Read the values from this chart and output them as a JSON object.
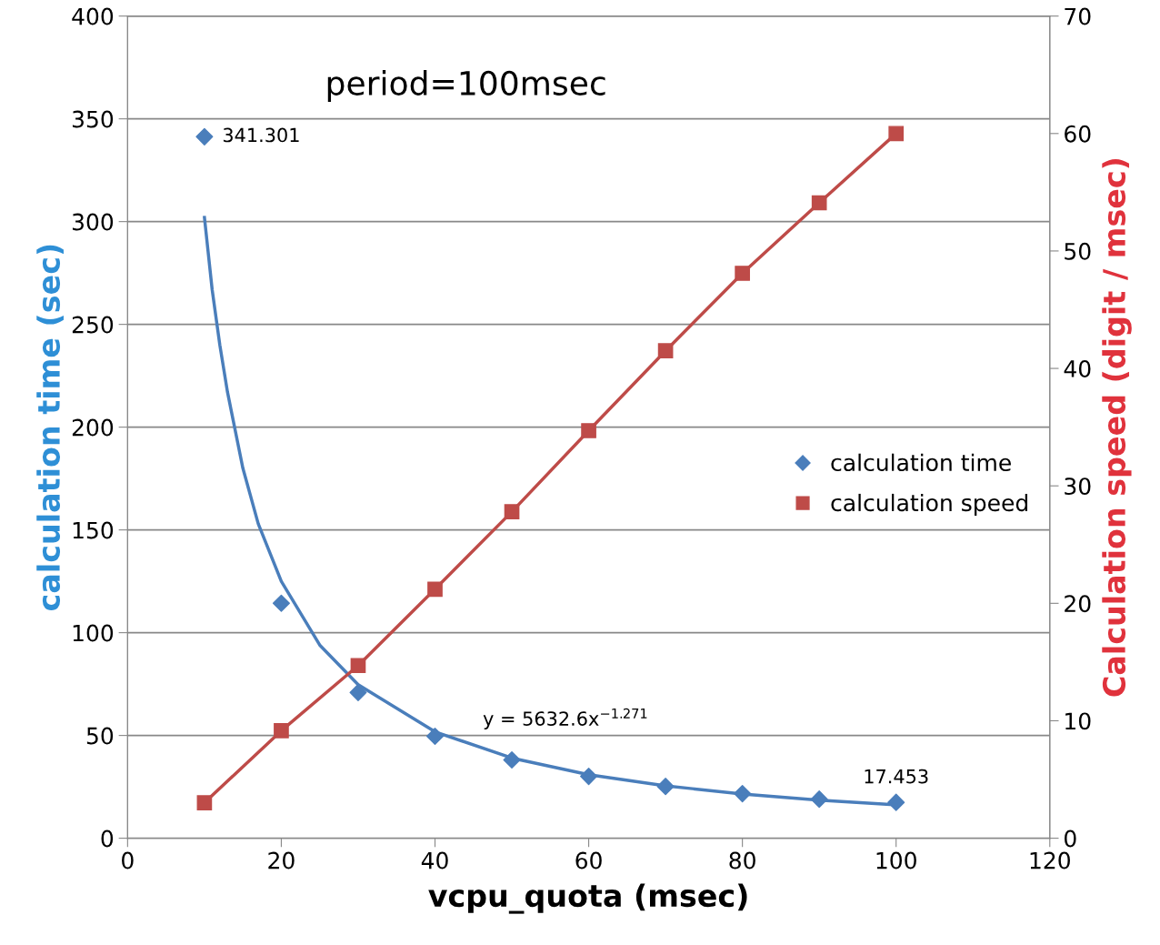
{
  "chart_data": {
    "type": "scatter",
    "xlabel": "vcpu_quota (msec)",
    "ylabel": "calculation time (sec)",
    "y2label": "Calculation speed (digit / msec)",
    "x": [
      10,
      20,
      30,
      40,
      50,
      60,
      70,
      80,
      90,
      100
    ],
    "series": [
      {
        "name": "calculation time",
        "color": "#4a7ebb",
        "marker": "diamond",
        "values": [
          341.301,
          114.3,
          70.9,
          49.6,
          38.1,
          30.1,
          25.2,
          21.7,
          19.0,
          17.453
        ],
        "value_labels": [
          "341.301",
          null,
          null,
          null,
          null,
          null,
          null,
          null,
          null,
          "17.453"
        ]
      },
      {
        "name": "calculation speed",
        "color": "#be4b48",
        "type": "line",
        "marker": "square",
        "axis": "y2",
        "values": [
          3.02,
          9.15,
          14.7,
          21.2,
          27.8,
          34.7,
          41.5,
          48.1,
          54.1,
          60.0
        ]
      },
      {
        "type": "line",
        "color": "#4a7ebb",
        "marker": "none",
        "x": [
          10,
          11,
          12,
          13,
          15,
          17,
          20,
          25,
          30,
          40,
          50,
          60,
          70,
          80,
          90,
          100
        ],
        "values": [
          302,
          267,
          240,
          217,
          180,
          153,
          125,
          94,
          74.7,
          51.8,
          39,
          30.9,
          25.5,
          21.5,
          18.5,
          16.2
        ]
      }
    ],
    "annotations": [
      "period=100msec",
      "y = 5632.6x$^{−1.271}$"
    ],
    "xlim": [
      0,
      120
    ],
    "xticks": [
      0,
      20,
      40,
      60,
      80,
      100,
      120
    ],
    "ylim": [
      0,
      400
    ],
    "yticks": [
      0,
      50,
      100,
      150,
      200,
      250,
      300,
      350,
      400
    ],
    "y2lim": [
      0,
      70
    ],
    "y2ticks": [
      0,
      10,
      20,
      30,
      40,
      50,
      60,
      70
    ],
    "grid": "y",
    "legend": "right"
  }
}
